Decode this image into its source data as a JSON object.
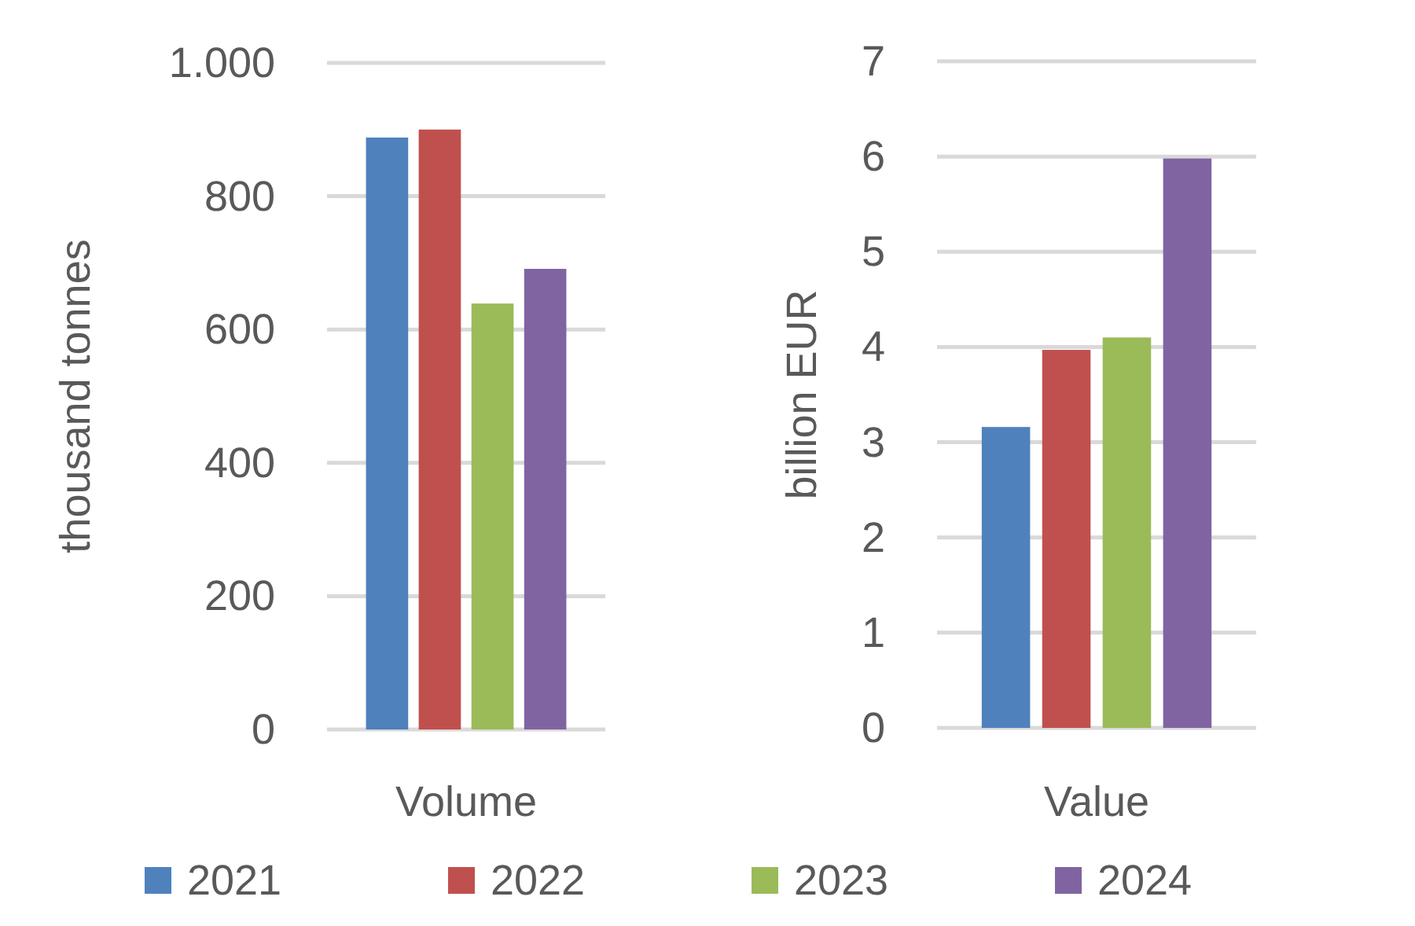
{
  "chart_data": [
    {
      "type": "bar",
      "categories": [
        "Volume"
      ],
      "ylabel": "thousand tonnes",
      "ylim": [
        0,
        1000
      ],
      "yticks": [
        0,
        200,
        400,
        600,
        800,
        {
          "value": 1000,
          "label": "1.000"
        }
      ],
      "grid": "y",
      "legend": "bottom",
      "series": [
        {
          "name": "2021",
          "color": "#4f81bd",
          "values": [
            888
          ]
        },
        {
          "name": "2022",
          "color": "#c0504d",
          "values": [
            900
          ]
        },
        {
          "name": "2023",
          "color": "#9bbb59",
          "values": [
            639
          ]
        },
        {
          "name": "2024",
          "color": "#8064a2",
          "values": [
            691
          ]
        }
      ]
    },
    {
      "type": "bar",
      "categories": [
        "Value"
      ],
      "ylabel": "billion EUR",
      "ylim": [
        0,
        7
      ],
      "yticks": [
        0,
        1,
        2,
        3,
        4,
        5,
        6,
        7
      ],
      "grid": "y",
      "legend": "bottom",
      "series": [
        {
          "name": "2021",
          "color": "#4f81bd",
          "values": [
            3.16
          ]
        },
        {
          "name": "2022",
          "color": "#c0504d",
          "values": [
            3.97
          ]
        },
        {
          "name": "2023",
          "color": "#9bbb59",
          "values": [
            4.1
          ]
        },
        {
          "name": "2024",
          "color": "#8064a2",
          "values": [
            5.98
          ]
        }
      ]
    }
  ]
}
